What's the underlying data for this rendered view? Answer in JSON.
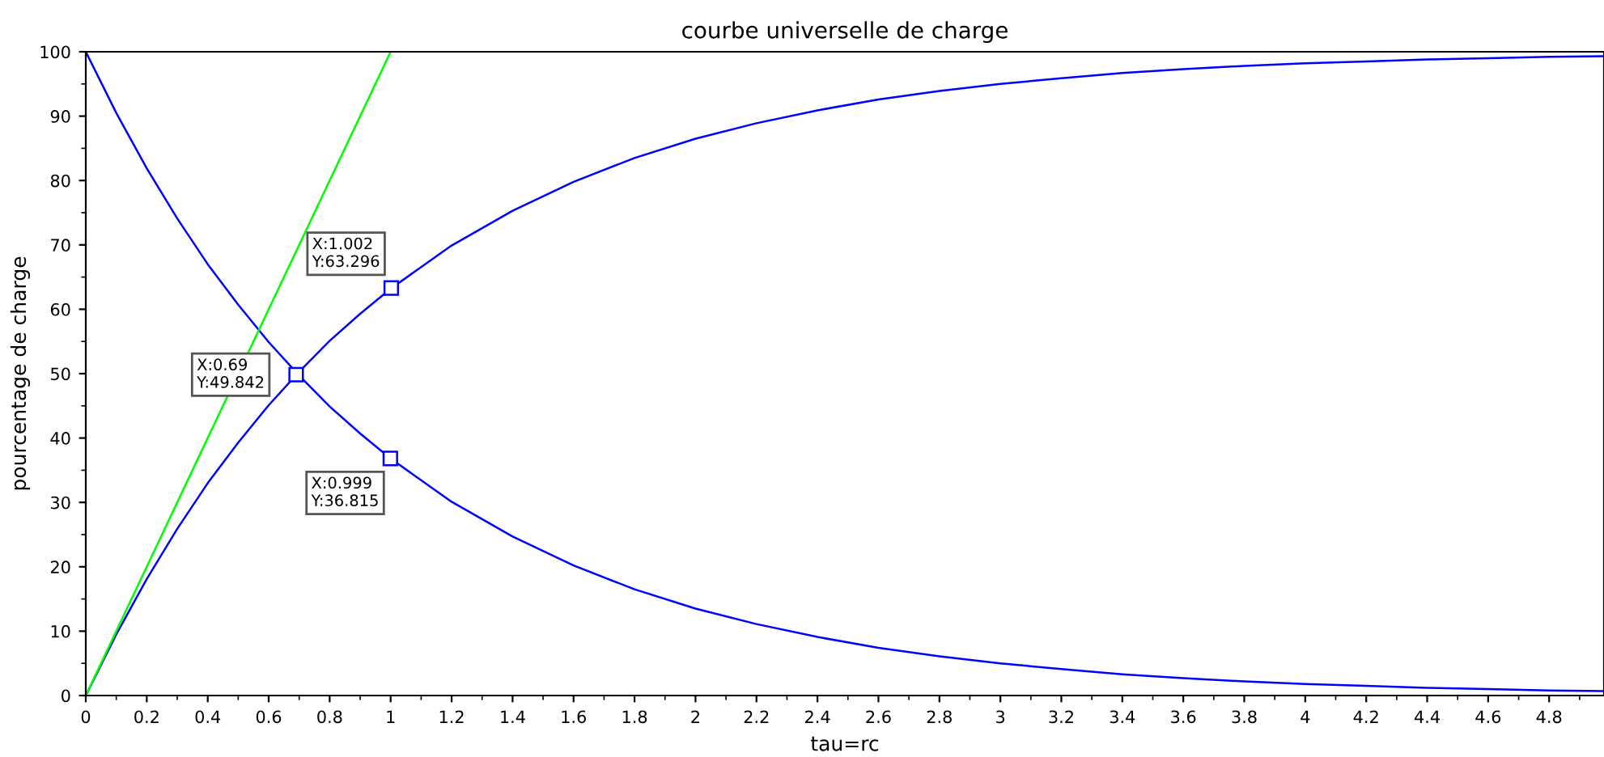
{
  "chart_data": {
    "type": "line",
    "title": "courbe universelle de charge",
    "xlabel": "tau=rc",
    "ylabel": "pourcentage de charge",
    "xlim": [
      0,
      4.98
    ],
    "ylim": [
      0,
      100
    ],
    "xticks": [
      0,
      0.2,
      0.4,
      0.6,
      0.8,
      1,
      1.2,
      1.4,
      1.6,
      1.8,
      2,
      2.2,
      2.4,
      2.6,
      2.8,
      3,
      3.2,
      3.4,
      3.6,
      3.8,
      4,
      4.2,
      4.4,
      4.6,
      4.8
    ],
    "yticks": [
      0,
      10,
      20,
      30,
      40,
      50,
      60,
      70,
      80,
      90,
      100
    ],
    "grid": false,
    "legend": false,
    "marker": "none",
    "line_style": "solid",
    "series": [
      {
        "color": "#0000ff",
        "x": [
          0,
          0.1,
          0.2,
          0.3,
          0.4,
          0.5,
          0.6,
          0.7,
          0.8,
          0.9,
          1,
          1.2,
          1.4,
          1.6,
          1.8,
          2,
          2.2,
          2.4,
          2.6,
          2.8,
          3,
          3.2,
          3.4,
          3.6,
          3.8,
          4,
          4.2,
          4.4,
          4.6,
          4.8,
          4.98
        ],
        "values": [
          0,
          9.5,
          18.1,
          25.9,
          33.0,
          39.3,
          45.1,
          50.3,
          55.1,
          59.3,
          63.2,
          69.9,
          75.3,
          79.8,
          83.5,
          86.5,
          88.9,
          90.9,
          92.6,
          93.9,
          95.0,
          95.9,
          96.7,
          97.3,
          97.8,
          98.2,
          98.5,
          98.8,
          99.0,
          99.2,
          99.3
        ]
      },
      {
        "color": "#0000ff",
        "x": [
          0,
          0.1,
          0.2,
          0.3,
          0.4,
          0.5,
          0.6,
          0.7,
          0.8,
          0.9,
          1,
          1.2,
          1.4,
          1.6,
          1.8,
          2,
          2.2,
          2.4,
          2.6,
          2.8,
          3,
          3.2,
          3.4,
          3.6,
          3.8,
          4,
          4.2,
          4.4,
          4.6,
          4.8,
          4.98
        ],
        "values": [
          100,
          90.5,
          81.9,
          74.1,
          67.0,
          60.7,
          54.9,
          49.7,
          44.9,
          40.7,
          36.8,
          30.1,
          24.7,
          20.2,
          16.5,
          13.5,
          11.1,
          9.1,
          7.4,
          6.1,
          5.0,
          4.1,
          3.3,
          2.7,
          2.2,
          1.8,
          1.5,
          1.2,
          1.0,
          0.8,
          0.7
        ]
      },
      {
        "color": "#00ff00",
        "x": [
          0,
          1
        ],
        "values": [
          0,
          100
        ]
      }
    ],
    "annotations": [
      {
        "text": "X:1.002\nY:63.296",
        "x": 1.002,
        "y": 63.296
      },
      {
        "text": "X:0.69\nY:49.842",
        "x": 0.69,
        "y": 49.842
      },
      {
        "text": "X:0.999\nY:36.815",
        "x": 0.999,
        "y": 36.815
      }
    ]
  }
}
